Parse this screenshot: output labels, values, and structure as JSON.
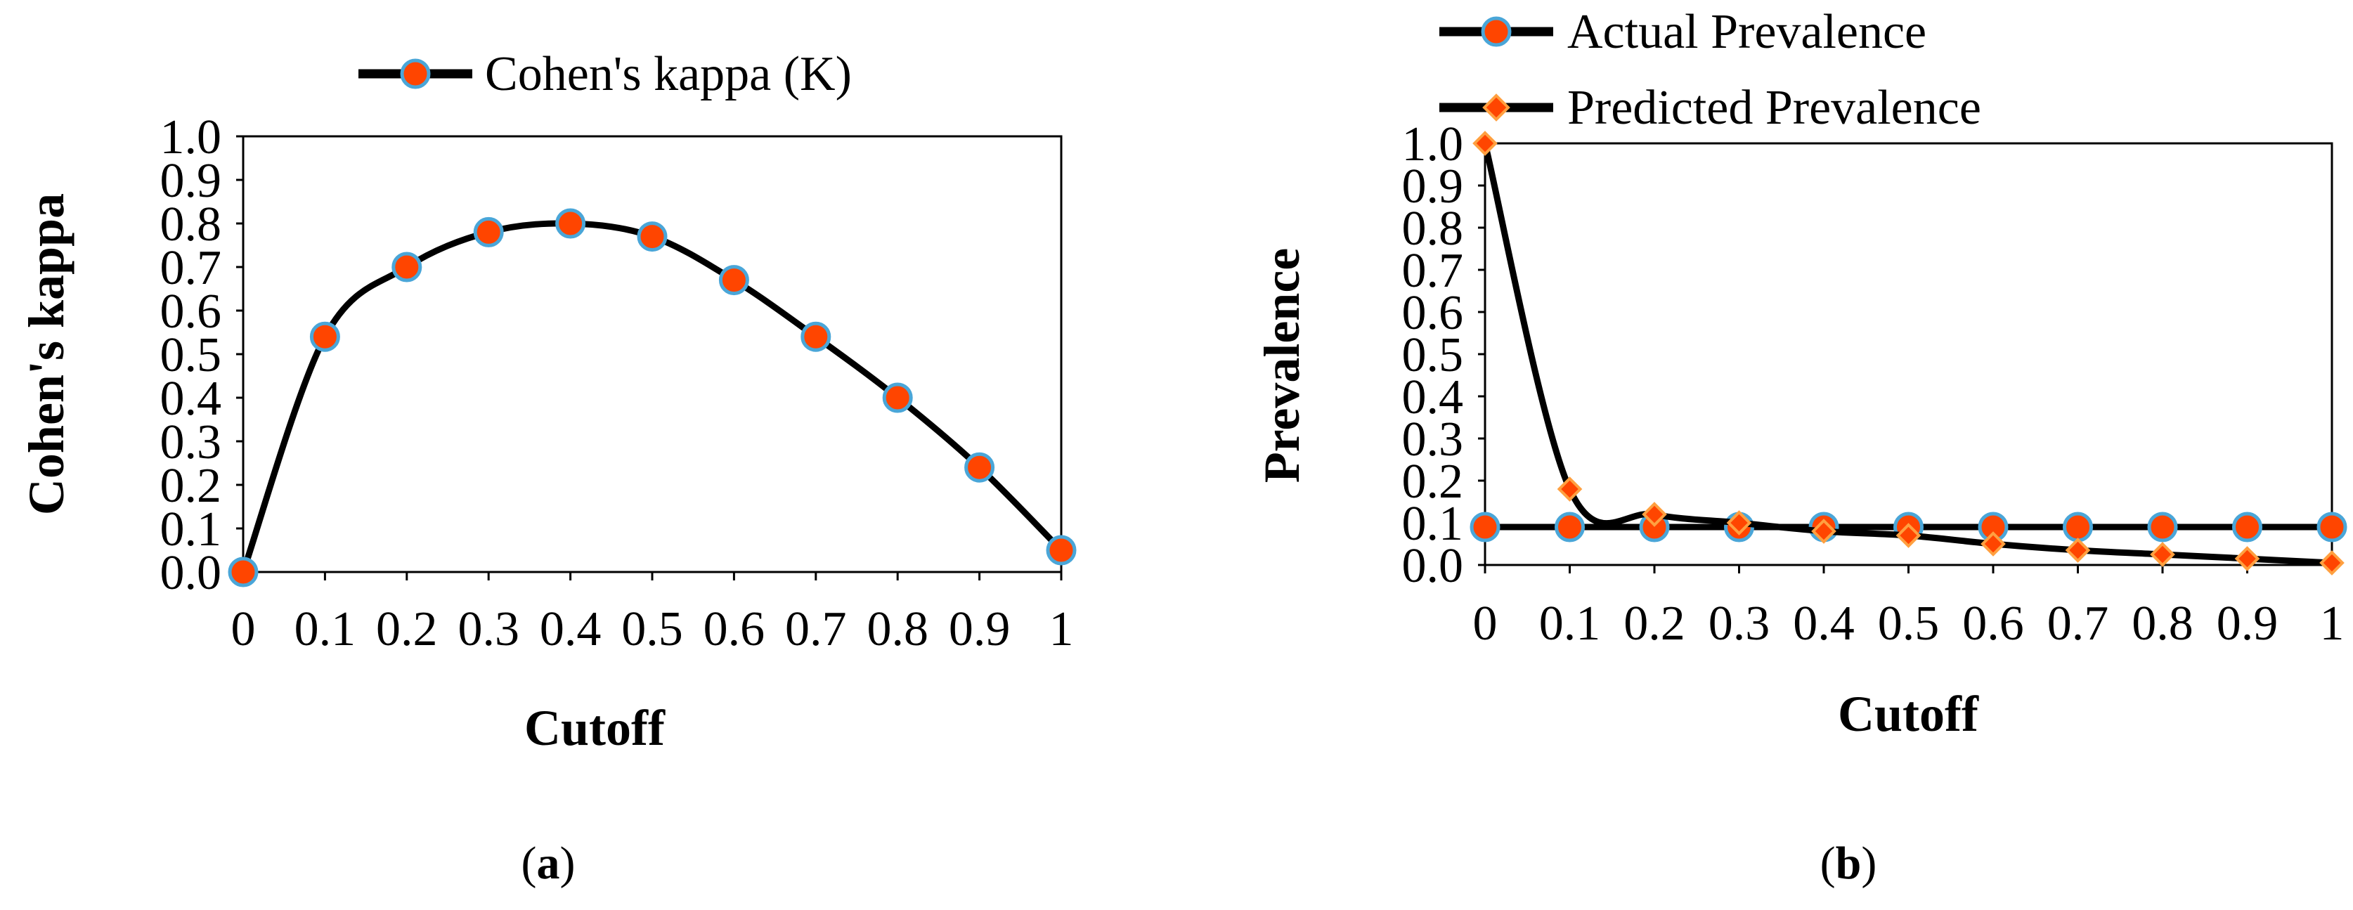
{
  "chart_data": [
    {
      "type": "line",
      "title": "",
      "caption": {
        "open": "(",
        "letter": "a",
        "close": ")"
      },
      "xlabel": "Cutoff",
      "ylabel": "Cohen's kappa",
      "x_tick_labels": [
        "0",
        "0.1",
        "0.2",
        "0.3",
        "0.4",
        "0.5",
        "0.6",
        "0.7",
        "0.8",
        "0.9",
        "1"
      ],
      "y_tick_labels": [
        "0.0",
        "0.1",
        "0.2",
        "0.3",
        "0.4",
        "0.5",
        "0.6",
        "0.7",
        "0.8",
        "0.9",
        "1.0"
      ],
      "ylim": [
        0,
        1
      ],
      "grid": false,
      "legend_position": "top",
      "x": [
        0,
        0.1,
        0.2,
        0.3,
        0.4,
        0.5,
        0.6,
        0.7,
        0.8,
        0.9,
        1
      ],
      "series": [
        {
          "name": "Cohen's kappa (K)",
          "marker": "circle",
          "values": [
            0.0,
            0.54,
            0.7,
            0.78,
            0.8,
            0.77,
            0.67,
            0.54,
            0.4,
            0.24,
            0.05
          ]
        }
      ]
    },
    {
      "type": "line",
      "title": "",
      "caption": {
        "open": "(",
        "letter": "b",
        "close": ")"
      },
      "xlabel": "Cutoff",
      "ylabel": "Prevalence",
      "x_tick_labels": [
        "0",
        "0.1",
        "0.2",
        "0.3",
        "0.4",
        "0.5",
        "0.6",
        "0.7",
        "0.8",
        "0.9",
        "1"
      ],
      "y_tick_labels": [
        "0.0",
        "0.1",
        "0.2",
        "0.3",
        "0.4",
        "0.5",
        "0.6",
        "0.7",
        "0.8",
        "0.9",
        "1.0"
      ],
      "ylim": [
        0,
        1
      ],
      "grid": false,
      "legend_position": "top",
      "x": [
        0,
        0.1,
        0.2,
        0.3,
        0.4,
        0.5,
        0.6,
        0.7,
        0.8,
        0.9,
        1
      ],
      "series": [
        {
          "name": "Actual Prevalence",
          "marker": "circle",
          "values": [
            0.09,
            0.09,
            0.09,
            0.09,
            0.09,
            0.09,
            0.09,
            0.09,
            0.09,
            0.09,
            0.09
          ]
        },
        {
          "name": "Predicted Prevalence",
          "marker": "diamond",
          "values": [
            1.0,
            0.18,
            0.12,
            0.1,
            0.08,
            0.07,
            0.05,
            0.035,
            0.025,
            0.015,
            0.005
          ]
        }
      ]
    }
  ],
  "colors": {
    "line": "#000000",
    "circle_marker_fill": "#ff4500",
    "circle_marker_stroke": "#4aa6d8",
    "diamond_marker_fill": "#ff4500",
    "diamond_marker_stroke": "#ffa040"
  }
}
